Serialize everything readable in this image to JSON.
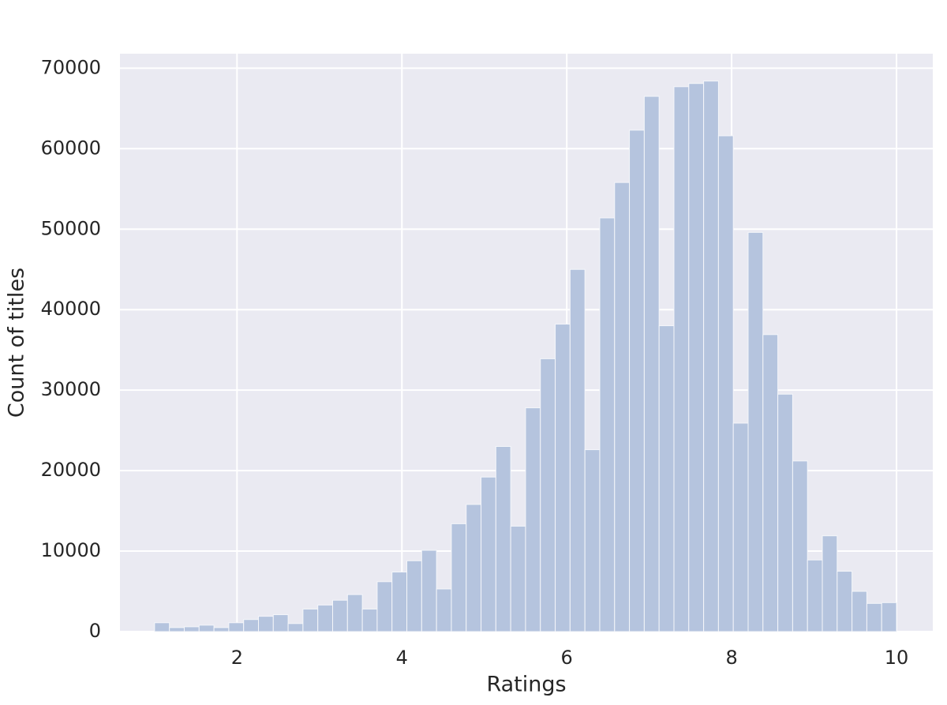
{
  "chart_data": {
    "type": "histogram",
    "x_label": "Ratings",
    "y_label": "Count of titles",
    "bins": [
      1.0,
      1.18,
      1.36,
      1.54,
      1.72,
      1.9,
      2.08,
      2.26,
      2.44,
      2.62,
      2.8,
      2.98,
      3.16,
      3.34,
      3.52,
      3.7,
      3.88,
      4.06,
      4.24,
      4.42,
      4.6,
      4.78,
      4.96,
      5.14,
      5.32,
      5.5,
      5.68,
      5.86,
      6.04,
      6.22,
      6.4,
      6.58,
      6.76,
      6.94,
      7.12,
      7.3,
      7.48,
      7.66,
      7.84,
      8.02,
      8.2,
      8.38,
      8.56,
      8.74,
      8.92,
      9.1,
      9.28,
      9.46,
      9.64,
      9.82,
      10.0
    ],
    "values": [
      1100,
      500,
      600,
      800,
      500,
      1100,
      1500,
      1900,
      2100,
      1000,
      2800,
      3300,
      3900,
      4600,
      2800,
      6200,
      7400,
      8800,
      10100,
      5300,
      13400,
      15800,
      19200,
      23000,
      13100,
      27800,
      33900,
      38200,
      45000,
      22600,
      51400,
      55800,
      62300,
      66500,
      38000,
      67700,
      68100,
      68400,
      61600,
      25900,
      49600,
      36900,
      29500,
      21200,
      8900,
      11900,
      7500,
      5000,
      3500,
      3600
    ],
    "color": "#b5c4de",
    "xlim": [
      0.58,
      10.44
    ],
    "ylim": [
      0,
      71800
    ],
    "xticks": [
      2,
      4,
      6,
      8,
      10
    ],
    "yticks": [
      0,
      10000,
      20000,
      30000,
      40000,
      50000,
      60000,
      70000
    ],
    "grid": true
  }
}
